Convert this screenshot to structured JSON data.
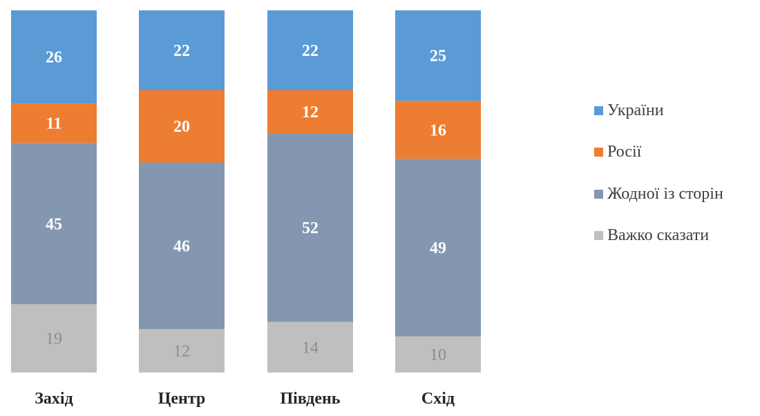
{
  "chart_data": {
    "type": "bar",
    "stacked": true,
    "normalized_percent": true,
    "categories": [
      "Захід",
      "Центр",
      "Південь",
      "Схід"
    ],
    "series": [
      {
        "name": "України",
        "color": "#5B9BD5",
        "label_style": "bold-white",
        "values": [
          26,
          22,
          22,
          25
        ]
      },
      {
        "name": "Росії",
        "color": "#ED7D31",
        "label_style": "bold-white",
        "values": [
          11,
          20,
          12,
          16
        ]
      },
      {
        "name": "Жодної із сторін",
        "color": "#8497B0",
        "label_style": "bold-white",
        "values": [
          45,
          46,
          52,
          49
        ]
      },
      {
        "name": "Важко сказати",
        "color": "#BFBFBF",
        "label_style": "regular-grey",
        "values": [
          19,
          12,
          14,
          10
        ]
      }
    ],
    "stack_order": "first series on top",
    "legend_position": "right",
    "grid": false
  }
}
